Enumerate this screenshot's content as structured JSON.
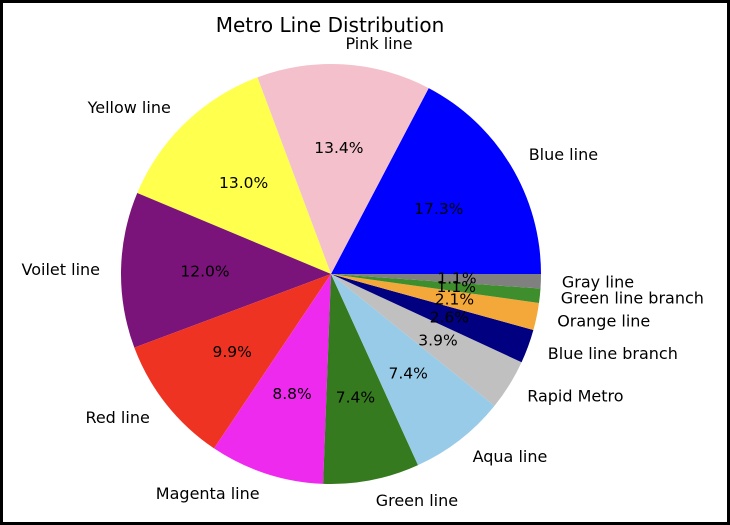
{
  "chart_data": {
    "type": "pie",
    "title": "Metro Line Distribution",
    "categories": [
      "Blue line",
      "Pink line",
      "Yellow line",
      "Voilet line",
      "Red line",
      "Magenta line",
      "Green line",
      "Aqua line",
      "Rapid Metro",
      "Blue line branch",
      "Orange line",
      "Green line branch",
      "Gray line"
    ],
    "values": [
      17.3,
      13.4,
      13.0,
      12.0,
      9.9,
      8.8,
      7.4,
      7.4,
      3.9,
      2.6,
      2.1,
      1.1,
      1.1
    ],
    "percent_labels": [
      "17.3%",
      "13.4%",
      "13.0%",
      "12.0%",
      "9.9%",
      "8.8%",
      "7.4%",
      "7.4%",
      "3.9%",
      "2.6%",
      "2.1%",
      "1.1%",
      "1.1%"
    ],
    "colors": [
      "#0000ff",
      "#f4c0cb",
      "#ffff4d",
      "#7a147a",
      "#ee3323",
      "#ef2aef",
      "#367a1f",
      "#98cbe8",
      "#c0c0c0",
      "#000080",
      "#f5a83a",
      "#3e8e2e",
      "#808080"
    ],
    "start_angle_deg": 0,
    "direction": "counterclockwise"
  }
}
